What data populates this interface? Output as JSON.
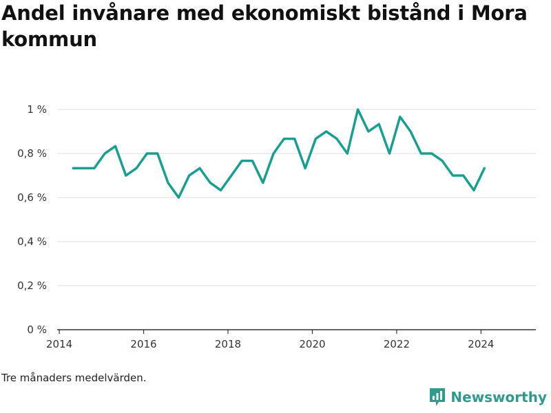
{
  "title": "Andel invånare med ekonomiskt bistånd i Mora kommun",
  "note": "Tre månaders medelvärden.",
  "brand": {
    "name": "Newsworthy",
    "icon": "newsworthy-logo-icon",
    "color": "#2f9b8f"
  },
  "chart_data": {
    "type": "line",
    "title": "Andel invånare med ekonomiskt bistånd i Mora kommun",
    "xlabel": "",
    "ylabel": "",
    "xlim": [
      2013.95,
      2025.3
    ],
    "ylim": [
      0,
      1.0
    ],
    "x_ticks": [
      2014,
      2016,
      2018,
      2020,
      2022,
      2024
    ],
    "y_ticks": [
      0,
      0.2,
      0.4,
      0.6,
      0.8,
      1.0
    ],
    "y_tick_labels": [
      "0 %",
      "0,2 %",
      "0,4 %",
      "0,6 %",
      "0,8 %",
      "1 %"
    ],
    "grid": true,
    "line_color": "#1a9e92",
    "series": [
      {
        "x": [
          2014.33,
          2014.58,
          2014.83,
          2015.08,
          2015.33,
          2015.58,
          2015.83,
          2016.08,
          2016.33,
          2016.58,
          2016.83,
          2017.08,
          2017.33,
          2017.58,
          2017.83,
          2018.08,
          2018.33,
          2018.58,
          2018.83,
          2019.08,
          2019.33,
          2019.58,
          2019.83,
          2020.08,
          2020.33,
          2020.58,
          2020.83,
          2021.08,
          2021.33,
          2021.58,
          2021.83,
          2022.08,
          2022.33,
          2022.58,
          2022.83,
          2023.08,
          2023.33,
          2023.58,
          2023.83,
          2024.08
        ],
        "y": [
          0.733,
          0.733,
          0.733,
          0.8,
          0.833,
          0.7,
          0.733,
          0.8,
          0.8,
          0.667,
          0.6,
          0.7,
          0.733,
          0.667,
          0.633,
          0.7,
          0.767,
          0.767,
          0.667,
          0.8,
          0.867,
          0.867,
          0.733,
          0.867,
          0.9,
          0.867,
          0.8,
          1.0,
          0.9,
          0.933,
          0.8,
          0.967,
          0.9,
          0.8,
          0.8,
          0.767,
          0.7,
          0.7,
          0.633,
          0.733
        ]
      }
    ]
  }
}
